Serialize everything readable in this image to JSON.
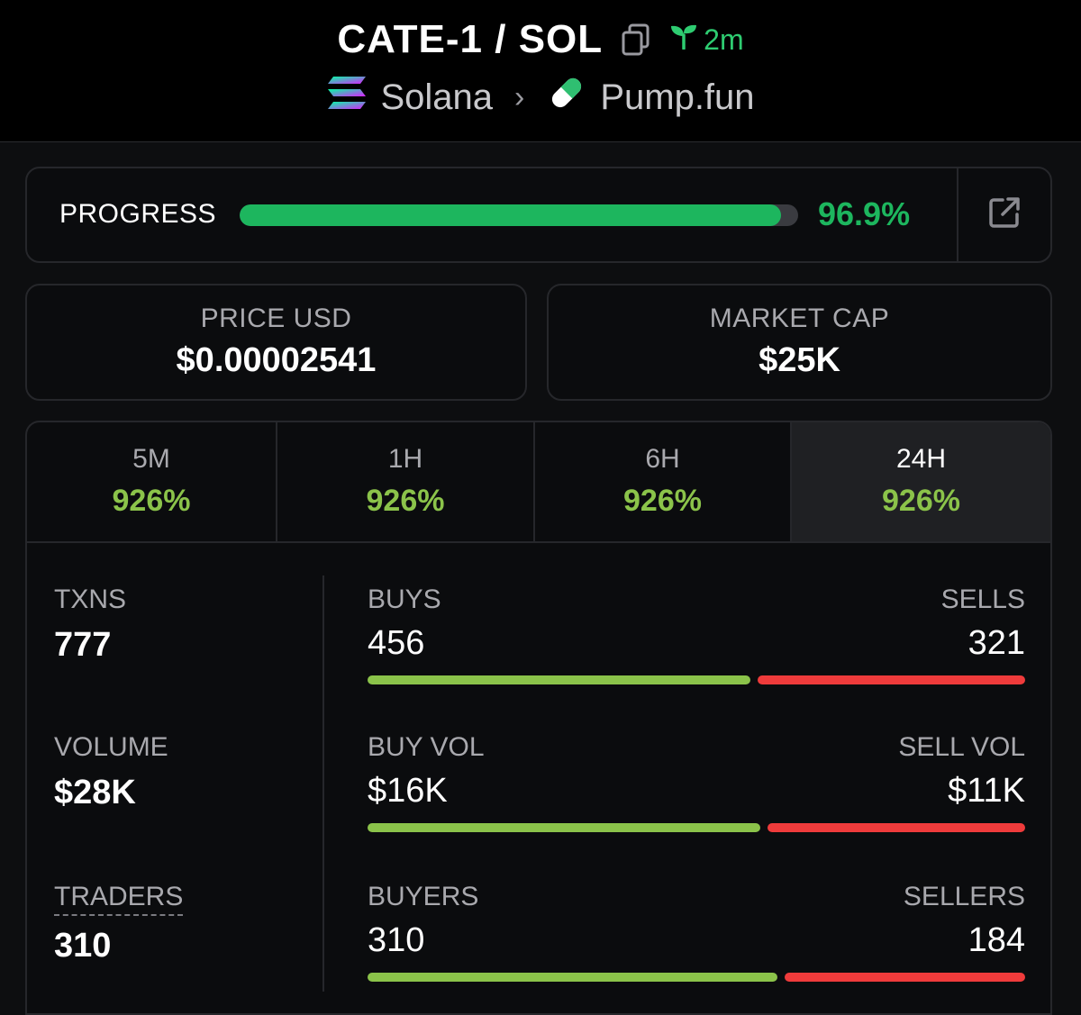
{
  "header": {
    "pair": "CATE-1 / SOL",
    "age": "2m",
    "chain": "Solana",
    "dex": "Pump.fun",
    "age_color": "#2ecc71"
  },
  "progress": {
    "label": "PROGRESS",
    "percent_text": "96.9%",
    "percent": 96.9,
    "color": "#1db65e"
  },
  "stats": {
    "price": {
      "label": "PRICE USD",
      "value": "$0.00002541"
    },
    "mcap": {
      "label": "MARKET CAP",
      "value": "$25K"
    }
  },
  "timeframes": [
    {
      "label": "5M",
      "change": "926%"
    },
    {
      "label": "1H",
      "change": "926%"
    },
    {
      "label": "6H",
      "change": "926%"
    },
    {
      "label": "24H",
      "change": "926%",
      "active": true
    }
  ],
  "txns": {
    "txns": {
      "label": "TXNS",
      "value": "777"
    },
    "volume": {
      "label": "VOLUME",
      "value": "$28K"
    },
    "traders": {
      "label": "TRADERS",
      "value": "310"
    },
    "buys_sells": {
      "left_label": "BUYS",
      "right_label": "SELLS",
      "left": "456",
      "right": "321",
      "buy_share": 0.587
    },
    "buy_sell_vol": {
      "left_label": "BUY VOL",
      "right_label": "SELL VOL",
      "left": "$16K",
      "right": "$11K",
      "buy_share": 0.603
    },
    "buyers_sellers": {
      "left_label": "BUYERS",
      "right_label": "SELLERS",
      "left": "310",
      "right": "184",
      "buy_share": 0.629
    }
  },
  "colors": {
    "buy": "#8bc34a",
    "sell": "#ef3b3b",
    "positive": "#8bc34a"
  }
}
